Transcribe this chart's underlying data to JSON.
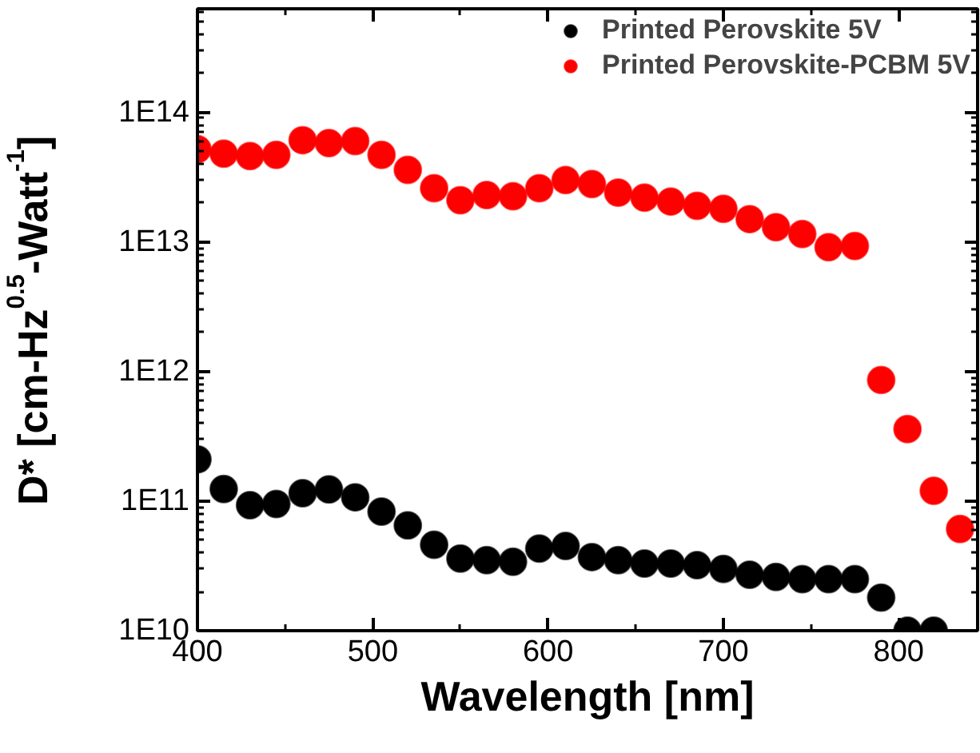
{
  "chart_data": {
    "type": "scatter",
    "xlabel": "Wavelength [nm]",
    "ylabel": "D* [cm-Hz$^{0.5}$-Watt$^{-1}$]",
    "series": [
      {
        "name": "Printed Perovskite 5V",
        "color": "#000000",
        "x": [
          400,
          415,
          430,
          445,
          460,
          475,
          490,
          505,
          520,
          535,
          550,
          565,
          580,
          595,
          610,
          625,
          640,
          655,
          670,
          685,
          700,
          715,
          730,
          745,
          760,
          775,
          790,
          805,
          820
        ],
        "values": [
          210000000000.0,
          124000000000.0,
          93000000000.0,
          95000000000.0,
          115000000000.0,
          123000000000.0,
          107000000000.0,
          83000000000.0,
          65000000000.0,
          46000000000.0,
          36000000000.0,
          35000000000.0,
          34000000000.0,
          43000000000.0,
          45000000000.0,
          37000000000.0,
          35000000000.0,
          33000000000.0,
          33000000000.0,
          32000000000.0,
          30000000000.0,
          27000000000.0,
          26000000000.0,
          25000000000.0,
          25000000000.0,
          25000000000.0,
          18000000000.0,
          10000000000.0,
          10000000000.0
        ]
      },
      {
        "name": "Printed Perovskite-PCBM 5V",
        "color": "#ff0000",
        "x": [
          400,
          415,
          430,
          445,
          460,
          475,
          490,
          505,
          520,
          535,
          550,
          565,
          580,
          595,
          610,
          625,
          640,
          655,
          670,
          685,
          700,
          715,
          730,
          745,
          760,
          775,
          790,
          805,
          820,
          835
        ],
        "values": [
          52000000000000.0,
          48000000000000.0,
          46000000000000.0,
          47000000000000.0,
          61000000000000.0,
          58000000000000.0,
          60000000000000.0,
          47000000000000.0,
          36000000000000.0,
          26000000000000.0,
          21000000000000.0,
          23000000000000.0,
          22500000000000.0,
          26000000000000.0,
          30000000000000.0,
          28000000000000.0,
          24000000000000.0,
          22000000000000.0,
          20500000000000.0,
          19000000000000.0,
          18000000000000.0,
          15000000000000.0,
          13000000000000.0,
          11500000000000.0,
          9100000000000.0,
          9300000000000.0,
          860000000000.0,
          360000000000.0,
          120000000000.0,
          61000000000.0
        ]
      }
    ],
    "xlim": [
      400,
      845
    ],
    "xticks": [
      400,
      500,
      600,
      700,
      800
    ],
    "ylim": [
      10000000000.0,
      630000000000000.0
    ],
    "yticks": [
      {
        "value": 10000000000.0,
        "label": "1E10"
      },
      {
        "value": 100000000000.0,
        "label": "1E11"
      },
      {
        "value": 1000000000000.0,
        "label": "1E12"
      },
      {
        "value": 10000000000000.0,
        "label": "1E13"
      },
      {
        "value": 100000000000000.0,
        "label": "1E14"
      }
    ],
    "log": "y",
    "grid": false,
    "legend": "top right",
    "marker": "circle"
  }
}
